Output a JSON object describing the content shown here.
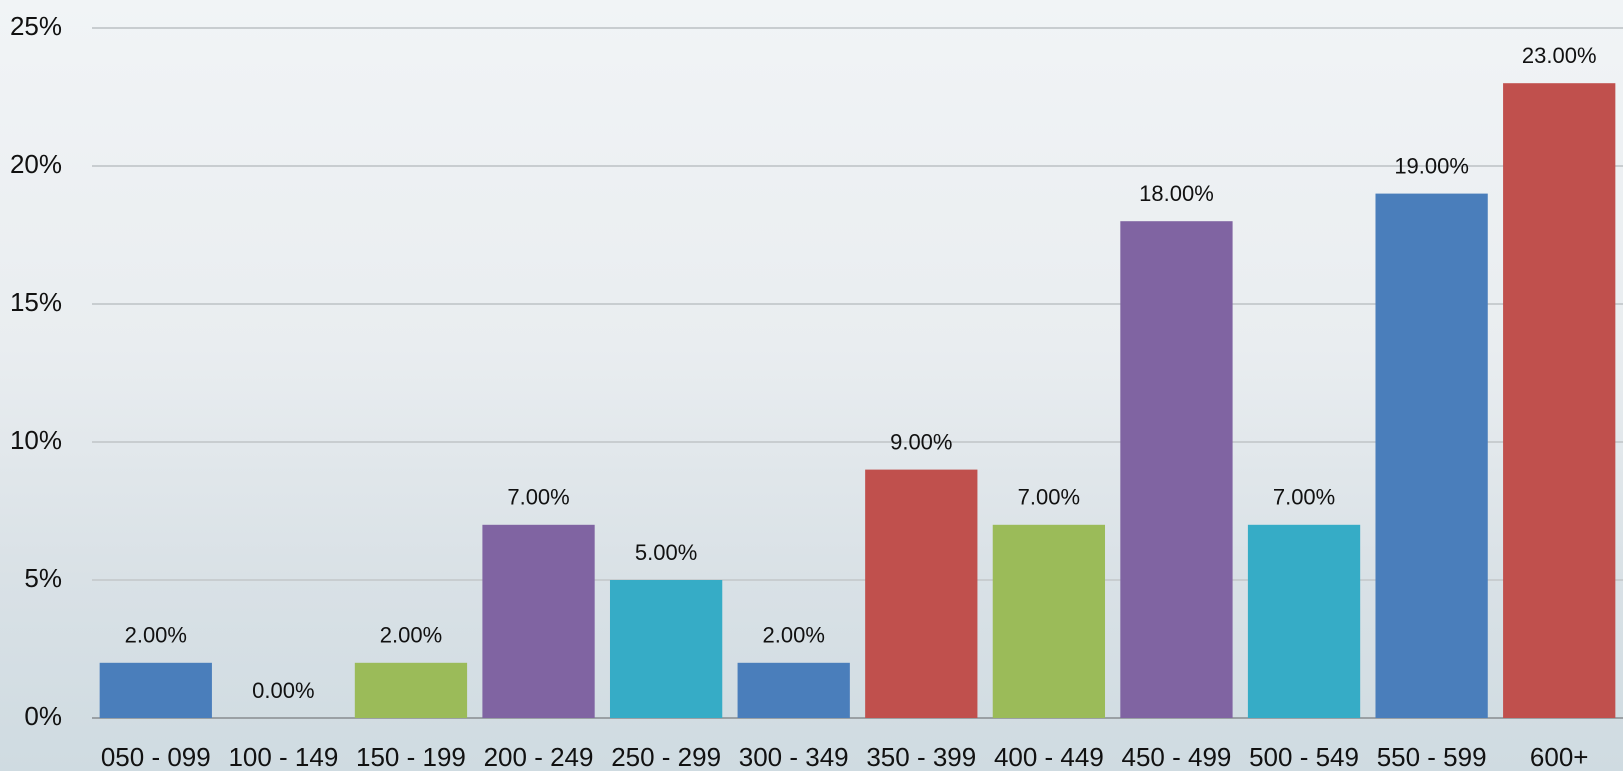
{
  "chart_data": {
    "type": "bar",
    "categories": [
      "050 - 099",
      "100 - 149",
      "150 - 199",
      "200 - 249",
      "250 - 299",
      "300 - 349",
      "350 - 399",
      "400 - 449",
      "450 - 499",
      "500 - 549",
      "550 - 599",
      "600+"
    ],
    "values": [
      2,
      0,
      2,
      7,
      5,
      2,
      9,
      7,
      18,
      7,
      19,
      23
    ],
    "value_labels": [
      "2.00%",
      "0.00%",
      "2.00%",
      "7.00%",
      "5.00%",
      "2.00%",
      "9.00%",
      "7.00%",
      "18.00%",
      "7.00%",
      "19.00%",
      "23.00%"
    ],
    "colors": [
      "#4a7ebb",
      "#c0504d",
      "#9bbb59",
      "#8064a2",
      "#36acc6",
      "#4a7ebb",
      "#c0504d",
      "#9bbb59",
      "#8064a2",
      "#36acc6",
      "#4a7ebb",
      "#c0504d"
    ],
    "ylim": [
      0,
      25
    ],
    "yticks": [
      {
        "value": 0,
        "label": "0%"
      },
      {
        "value": 5,
        "label": "5%"
      },
      {
        "value": 10,
        "label": "10%"
      },
      {
        "value": 15,
        "label": "15%"
      },
      {
        "value": 20,
        "label": "20%"
      },
      {
        "value": 25,
        "label": "25%"
      }
    ],
    "grid": true
  }
}
